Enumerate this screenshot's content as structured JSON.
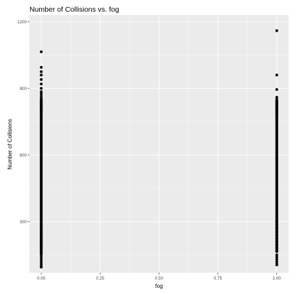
{
  "chart_data": {
    "type": "scatter",
    "title": "Number of Collisions vs. fog",
    "xlabel": "fog",
    "ylabel": "Number of Collisions",
    "xlim": [
      -0.05,
      1.05
    ],
    "ylim": [
      70,
      1230
    ],
    "x_ticks": [
      "0.00",
      "0.25",
      "0.50",
      "0.75",
      "1.00"
    ],
    "x_tick_values": [
      0,
      0.25,
      0.5,
      0.75,
      1.0
    ],
    "y_ticks": [
      "300",
      "600",
      "900",
      "1200"
    ],
    "y_tick_values": [
      300,
      600,
      900,
      1200
    ],
    "grid": true,
    "panel_background": "#ebebeb",
    "grid_color": "#ffffff",
    "point_color": "#000000",
    "series": [
      {
        "x": 0,
        "continuous_range": [
          150,
          855
        ],
        "points": [
          1065,
          995,
          975,
          960,
          940,
          920,
          900,
          885,
          875,
          865,
          855,
          845,
          835,
          825,
          815,
          805,
          795,
          285,
          270,
          255,
          245,
          235,
          225,
          215,
          205,
          195,
          185,
          175,
          160,
          150,
          140,
          130,
          120,
          110,
          100,
          95
        ]
      },
      {
        "x": 1,
        "continuous_range": [
          160,
          850
        ],
        "points": [
          1160,
          960,
          895,
          860,
          850,
          840,
          830,
          820,
          810,
          800,
          790,
          300,
          285,
          270,
          255,
          240,
          225,
          210,
          195,
          180,
          165,
          150,
          140,
          130,
          120,
          110,
          105
        ]
      }
    ]
  }
}
